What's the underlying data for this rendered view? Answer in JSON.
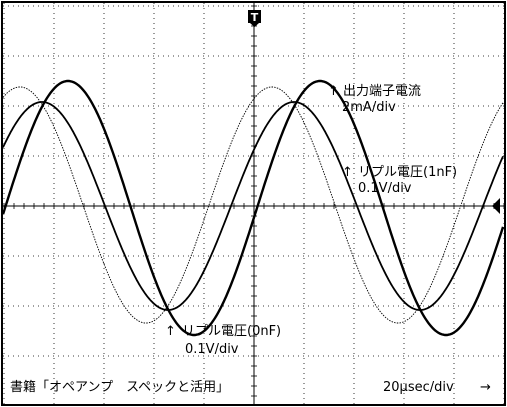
{
  "screen": {
    "trigger_marker": "T",
    "horizontal_scale": "20μsec/div"
  },
  "traces": [
    {
      "name": "出力端子電流",
      "scale": "2mA/div",
      "style": "thick"
    },
    {
      "name": "リプル電圧(1nF)",
      "scale": "0.1V/div",
      "style": "medium"
    },
    {
      "name": "リプル電圧(0nF)",
      "scale": "0.1V/div",
      "style": "thin"
    }
  ],
  "footer": {
    "source": "書籍「オペアンプ　スペックと活用」",
    "timebase": "20μsec/div",
    "arrow": "→"
  },
  "labels": {
    "up_arrow": "↑"
  },
  "colors": {
    "background": "#ffffff",
    "grid": "#000000",
    "trace": "#000000"
  }
}
